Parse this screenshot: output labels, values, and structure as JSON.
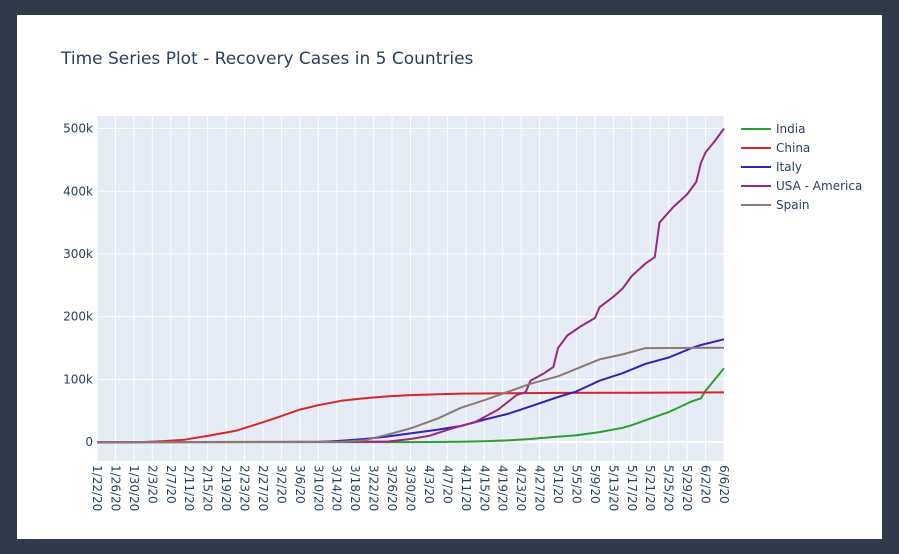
{
  "chart_data": {
    "type": "line",
    "title": "Time Series Plot - Recovery Cases in 5 Countries",
    "xlabel": "",
    "ylabel": "",
    "x_start": "2020-01-22",
    "x_end": "2020-06-06",
    "ylim": [
      -30000,
      520000
    ],
    "y_ticks": [
      0,
      100000,
      200000,
      300000,
      400000,
      500000
    ],
    "y_tick_labels": [
      "0",
      "100k",
      "200k",
      "300k",
      "400k",
      "500k"
    ],
    "x_tick_labels": [
      "1/22/20",
      "1/26/20",
      "1/30/20",
      "2/3/20",
      "2/7/20",
      "2/11/20",
      "2/15/20",
      "2/19/20",
      "2/23/20",
      "2/27/20",
      "3/2/20",
      "3/6/20",
      "3/10/20",
      "3/14/20",
      "3/18/20",
      "3/22/20",
      "3/26/20",
      "3/30/20",
      "4/3/20",
      "4/7/20",
      "4/11/20",
      "4/15/20",
      "4/19/20",
      "4/23/20",
      "4/27/20",
      "5/1/20",
      "5/5/20",
      "5/9/20",
      "5/13/20",
      "5/17/20",
      "5/21/20",
      "5/25/20",
      "5/29/20",
      "6/2/20",
      "6/6/20"
    ],
    "grid": true,
    "legend_position": "right",
    "plot_background": "#e5ecf6",
    "series": [
      {
        "name": "India",
        "color": "#2ca02c",
        "points": [
          [
            "2020-01-22",
            0
          ],
          [
            "2020-03-30",
            100
          ],
          [
            "2020-04-10",
            800
          ],
          [
            "2020-04-15",
            1500
          ],
          [
            "2020-04-20",
            2800
          ],
          [
            "2020-04-25",
            5000
          ],
          [
            "2020-04-30",
            8300
          ],
          [
            "2020-05-05",
            11000
          ],
          [
            "2020-05-10",
            16000
          ],
          [
            "2020-05-15",
            23000
          ],
          [
            "2020-05-17",
            27000
          ],
          [
            "2020-05-20",
            35000
          ],
          [
            "2020-05-25",
            48000
          ],
          [
            "2020-05-30",
            65000
          ],
          [
            "2020-06-01",
            70000
          ],
          [
            "2020-06-02",
            82000
          ],
          [
            "2020-06-06",
            118000
          ]
        ]
      },
      {
        "name": "China",
        "color": "#d62728",
        "points": [
          [
            "2020-01-22",
            0
          ],
          [
            "2020-02-01",
            300
          ],
          [
            "2020-02-05",
            1500
          ],
          [
            "2020-02-10",
            4000
          ],
          [
            "2020-02-15",
            10000
          ],
          [
            "2020-02-18",
            14000
          ],
          [
            "2020-02-21",
            18000
          ],
          [
            "2020-02-25",
            27000
          ],
          [
            "2020-03-01",
            39000
          ],
          [
            "2020-03-06",
            52000
          ],
          [
            "2020-03-10",
            59000
          ],
          [
            "2020-03-15",
            66000
          ],
          [
            "2020-03-20",
            70000
          ],
          [
            "2020-03-25",
            73000
          ],
          [
            "2020-03-30",
            75000
          ],
          [
            "2020-04-05",
            76500
          ],
          [
            "2020-04-10",
            77500
          ],
          [
            "2020-04-20",
            77900
          ],
          [
            "2020-05-01",
            78500
          ],
          [
            "2020-05-15",
            78800
          ],
          [
            "2020-06-06",
            79300
          ]
        ]
      },
      {
        "name": "Italy",
        "color": "#3021c0",
        "points": [
          [
            "2020-01-22",
            0
          ],
          [
            "2020-03-10",
            300
          ],
          [
            "2020-03-15",
            2300
          ],
          [
            "2020-03-20",
            5000
          ],
          [
            "2020-03-25",
            9000
          ],
          [
            "2020-03-30",
            14000
          ],
          [
            "2020-04-05",
            20000
          ],
          [
            "2020-04-10",
            26000
          ],
          [
            "2020-04-15",
            36000
          ],
          [
            "2020-04-20",
            45000
          ],
          [
            "2020-04-25",
            57000
          ],
          [
            "2020-05-01",
            72000
          ],
          [
            "2020-05-05",
            81000
          ],
          [
            "2020-05-10",
            98000
          ],
          [
            "2020-05-15",
            110000
          ],
          [
            "2020-05-20",
            125000
          ],
          [
            "2020-05-25",
            135000
          ],
          [
            "2020-05-30",
            150000
          ],
          [
            "2020-06-01",
            155000
          ],
          [
            "2020-06-06",
            164000
          ]
        ]
      },
      {
        "name": "USA - America",
        "color": "#9c2781",
        "points": [
          [
            "2020-01-22",
            0
          ],
          [
            "2020-03-25",
            1000
          ],
          [
            "2020-03-30",
            5000
          ],
          [
            "2020-04-03",
            10000
          ],
          [
            "2020-04-08",
            22000
          ],
          [
            "2020-04-13",
            32000
          ],
          [
            "2020-04-18",
            52000
          ],
          [
            "2020-04-22",
            75000
          ],
          [
            "2020-04-24",
            80000
          ],
          [
            "2020-04-25",
            98000
          ],
          [
            "2020-04-28",
            110000
          ],
          [
            "2020-04-30",
            120000
          ],
          [
            "2020-05-01",
            150000
          ],
          [
            "2020-05-03",
            170000
          ],
          [
            "2020-05-06",
            185000
          ],
          [
            "2020-05-09",
            198000
          ],
          [
            "2020-05-10",
            215000
          ],
          [
            "2020-05-13",
            232000
          ],
          [
            "2020-05-15",
            245000
          ],
          [
            "2020-05-17",
            265000
          ],
          [
            "2020-05-20",
            285000
          ],
          [
            "2020-05-22",
            295000
          ],
          [
            "2020-05-23",
            350000
          ],
          [
            "2020-05-26",
            375000
          ],
          [
            "2020-05-29",
            395000
          ],
          [
            "2020-05-31",
            415000
          ],
          [
            "2020-06-01",
            445000
          ],
          [
            "2020-06-02",
            462000
          ],
          [
            "2020-06-04",
            480000
          ],
          [
            "2020-06-06",
            500000
          ]
        ]
      },
      {
        "name": "Spain",
        "color": "#8c7a72",
        "points": [
          [
            "2020-01-22",
            0
          ],
          [
            "2020-03-15",
            500
          ],
          [
            "2020-03-20",
            3000
          ],
          [
            "2020-03-25",
            12000
          ],
          [
            "2020-03-30",
            22000
          ],
          [
            "2020-04-05",
            38000
          ],
          [
            "2020-04-10",
            55000
          ],
          [
            "2020-04-15",
            67000
          ],
          [
            "2020-04-20",
            80000
          ],
          [
            "2020-04-25",
            93000
          ],
          [
            "2020-05-01",
            105000
          ],
          [
            "2020-05-05",
            117000
          ],
          [
            "2020-05-10",
            132000
          ],
          [
            "2020-05-15",
            140000
          ],
          [
            "2020-05-19",
            148000
          ],
          [
            "2020-05-20",
            150000
          ],
          [
            "2020-06-06",
            150500
          ]
        ]
      }
    ]
  }
}
